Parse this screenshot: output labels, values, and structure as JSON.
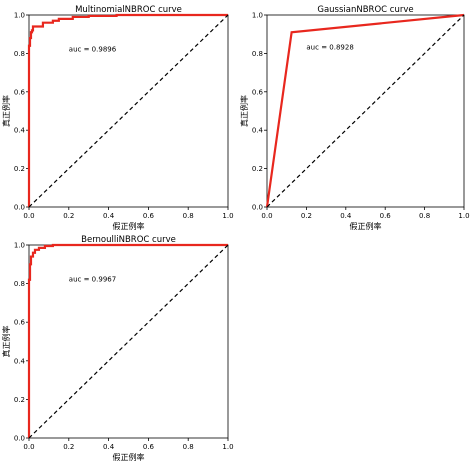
{
  "chart_data": [
    {
      "type": "line",
      "title": "MultinomialNBROC curve",
      "xlabel": "假正例率",
      "ylabel": "真正例率",
      "xlim": [
        0,
        1
      ],
      "ylim": [
        0,
        1
      ],
      "xticks": [
        "0.0",
        "0.2",
        "0.4",
        "0.6",
        "0.8",
        "1.0"
      ],
      "yticks": [
        "0.0",
        "0.2",
        "0.4",
        "0.6",
        "0.8",
        "1.0"
      ],
      "grid": false,
      "annotation": "auc = 0.9896",
      "series": [
        {
          "color": "#e8271e",
          "x": [
            0,
            0,
            0.005,
            0.005,
            0.01,
            0.01,
            0.015,
            0.015,
            0.02,
            0.02,
            0.035,
            0.06,
            0.07,
            0.07,
            0.1,
            0.12,
            0.12,
            0.15,
            0.15,
            0.18,
            0.22,
            0.22,
            0.3,
            0.3,
            0.44,
            0.44,
            1.0
          ],
          "y": [
            0,
            0.84,
            0.84,
            0.88,
            0.88,
            0.91,
            0.91,
            0.92,
            0.92,
            0.94,
            0.94,
            0.94,
            0.94,
            0.96,
            0.96,
            0.96,
            0.97,
            0.97,
            0.98,
            0.98,
            0.98,
            0.99,
            0.99,
            0.995,
            0.995,
            1.0,
            1.0
          ]
        },
        {
          "color": "#000000",
          "style": "dashed",
          "x": [
            0,
            1
          ],
          "y": [
            0,
            1
          ]
        }
      ]
    },
    {
      "type": "line",
      "title": "GaussianNBROC curve",
      "xlabel": "假正例率",
      "ylabel": "真正例率",
      "xlim": [
        0,
        1
      ],
      "ylim": [
        0,
        1
      ],
      "xticks": [
        "0.0",
        "0.2",
        "0.4",
        "0.6",
        "0.8",
        "1.0"
      ],
      "yticks": [
        "0.0",
        "0.2",
        "0.4",
        "0.6",
        "0.8",
        "1.0"
      ],
      "grid": false,
      "annotation": "auc = 0.8928",
      "series": [
        {
          "color": "#e8271e",
          "x": [
            0,
            0.125,
            1.0
          ],
          "y": [
            0,
            0.91,
            1.0
          ]
        },
        {
          "color": "#000000",
          "style": "dashed",
          "x": [
            0,
            1
          ],
          "y": [
            0,
            1
          ]
        }
      ]
    },
    {
      "type": "line",
      "title": "BernoulliNBROC curve",
      "xlabel": "假正例率",
      "ylabel": "真正例率",
      "xlim": [
        0,
        1
      ],
      "ylim": [
        0,
        1
      ],
      "xticks": [
        "0.0",
        "0.2",
        "0.4",
        "0.6",
        "0.8",
        "1.0"
      ],
      "yticks": [
        "0.0",
        "0.2",
        "0.4",
        "0.6",
        "0.8",
        "1.0"
      ],
      "grid": false,
      "annotation": "auc = 0.9967",
      "series": [
        {
          "color": "#e8271e",
          "x": [
            0,
            0,
            0.005,
            0.005,
            0.01,
            0.01,
            0.02,
            0.02,
            0.03,
            0.03,
            0.05,
            0.05,
            0.08,
            0.08,
            0.12,
            0.12,
            1.0
          ],
          "y": [
            0,
            0.82,
            0.82,
            0.9,
            0.9,
            0.94,
            0.94,
            0.96,
            0.96,
            0.975,
            0.975,
            0.985,
            0.985,
            0.995,
            0.995,
            1.0,
            1.0
          ]
        },
        {
          "color": "#000000",
          "style": "dashed",
          "x": [
            0,
            1
          ],
          "y": [
            0,
            1
          ]
        }
      ]
    }
  ]
}
